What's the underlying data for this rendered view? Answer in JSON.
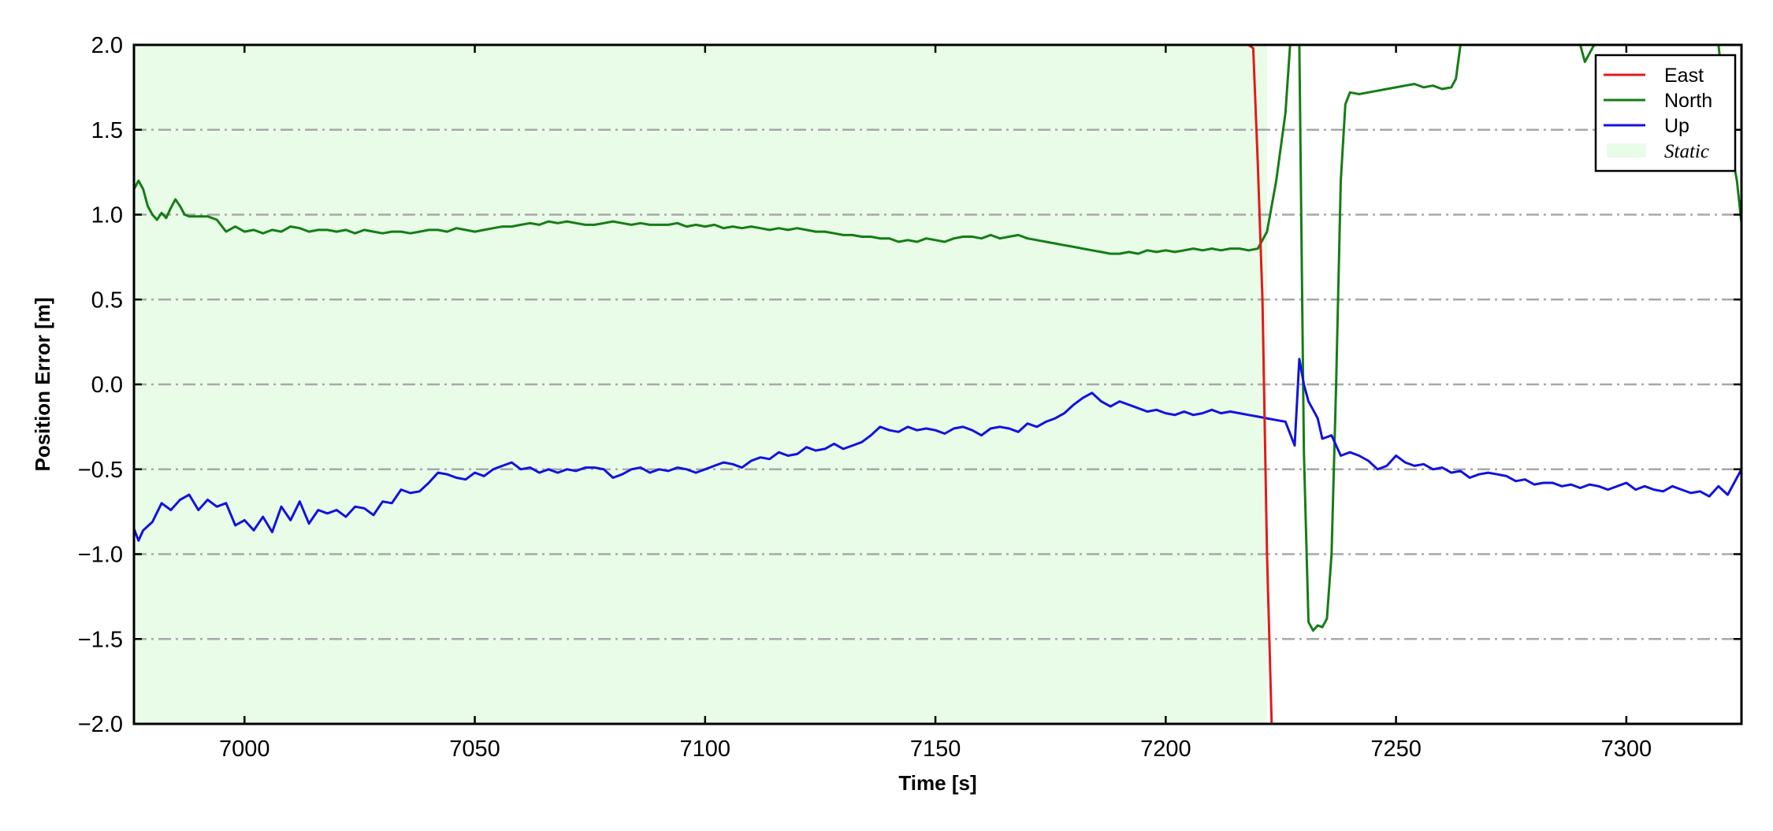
{
  "chart_data": {
    "type": "line",
    "title": "",
    "xlabel": "Time [s]",
    "ylabel": "Position Error [m]",
    "xlim": [
      6976,
      7325
    ],
    "ylim": [
      -2.0,
      2.0
    ],
    "x_ticks": [
      7000,
      7050,
      7100,
      7150,
      7200,
      7250,
      7300
    ],
    "y_ticks": [
      -2.0,
      -1.5,
      -1.0,
      -0.5,
      0.0,
      0.5,
      1.0,
      1.5,
      2.0
    ],
    "y_tick_labels": [
      "−2.0",
      "−1.5",
      "−1.0",
      "−0.5",
      "0.0",
      "0.5",
      "1.0",
      "1.5",
      "2.0"
    ],
    "grid": "horizontal dash-dot",
    "legend_position": "top-right",
    "static_region": {
      "name": "Static",
      "x_start": 6976,
      "x_end": 7222,
      "color": "#e8fce8"
    },
    "colors": {
      "East": "#e31a1c",
      "North": "#157d15",
      "Up": "#1212dd"
    },
    "series": [
      {
        "name": "East",
        "x": [
          7213,
          7217,
          7219,
          7220,
          7221,
          7222,
          7223
        ],
        "y": [
          2.0,
          2.02,
          1.98,
          1.3,
          0.5,
          -1.0,
          -2.0
        ]
      },
      {
        "name": "North",
        "x": [
          6976,
          6977,
          6978,
          6979,
          6980,
          6981,
          6982,
          6983,
          6984,
          6985,
          6986,
          6987,
          6988,
          6990,
          6992,
          6994,
          6996,
          6998,
          7000,
          7002,
          7004,
          7006,
          7008,
          7010,
          7012,
          7014,
          7016,
          7018,
          7020,
          7022,
          7024,
          7026,
          7028,
          7030,
          7032,
          7034,
          7036,
          7038,
          7040,
          7042,
          7044,
          7046,
          7048,
          7050,
          7052,
          7054,
          7056,
          7058,
          7060,
          7062,
          7064,
          7066,
          7068,
          7070,
          7072,
          7074,
          7076,
          7078,
          7080,
          7082,
          7084,
          7086,
          7088,
          7090,
          7092,
          7094,
          7096,
          7098,
          7100,
          7102,
          7104,
          7106,
          7108,
          7110,
          7112,
          7114,
          7116,
          7118,
          7120,
          7122,
          7124,
          7126,
          7128,
          7130,
          7132,
          7134,
          7136,
          7138,
          7140,
          7142,
          7144,
          7146,
          7148,
          7150,
          7152,
          7154,
          7156,
          7158,
          7160,
          7162,
          7164,
          7166,
          7168,
          7170,
          7172,
          7174,
          7176,
          7178,
          7180,
          7182,
          7184,
          7186,
          7188,
          7190,
          7192,
          7194,
          7196,
          7198,
          7200,
          7202,
          7204,
          7206,
          7208,
          7210,
          7212,
          7214,
          7216,
          7218,
          7220,
          7222,
          7224,
          7226,
          7227,
          7228,
          7229,
          7230,
          7231,
          7232,
          7233,
          7234,
          7235,
          7236,
          7237,
          7238,
          7239,
          7240,
          7242,
          7244,
          7246,
          7248,
          7250,
          7252,
          7254,
          7256,
          7258,
          7260,
          7262,
          7263,
          7264,
          7265,
          7266,
          7270,
          7290,
          7291,
          7292,
          7293,
          7295,
          7320,
          7322,
          7324,
          7325
        ],
        "y": [
          1.15,
          1.2,
          1.15,
          1.05,
          1.0,
          0.97,
          1.01,
          0.98,
          1.04,
          1.09,
          1.05,
          1.0,
          0.99,
          0.99,
          0.99,
          0.97,
          0.9,
          0.93,
          0.9,
          0.91,
          0.89,
          0.91,
          0.9,
          0.93,
          0.92,
          0.9,
          0.91,
          0.91,
          0.9,
          0.91,
          0.89,
          0.91,
          0.9,
          0.89,
          0.9,
          0.9,
          0.89,
          0.9,
          0.91,
          0.91,
          0.9,
          0.92,
          0.91,
          0.9,
          0.91,
          0.92,
          0.93,
          0.93,
          0.94,
          0.95,
          0.94,
          0.96,
          0.95,
          0.96,
          0.95,
          0.94,
          0.94,
          0.95,
          0.96,
          0.95,
          0.94,
          0.95,
          0.94,
          0.94,
          0.94,
          0.95,
          0.93,
          0.94,
          0.93,
          0.94,
          0.92,
          0.93,
          0.92,
          0.93,
          0.92,
          0.91,
          0.92,
          0.91,
          0.92,
          0.91,
          0.9,
          0.9,
          0.89,
          0.88,
          0.88,
          0.87,
          0.87,
          0.86,
          0.86,
          0.84,
          0.85,
          0.84,
          0.86,
          0.85,
          0.84,
          0.86,
          0.87,
          0.87,
          0.86,
          0.88,
          0.86,
          0.87,
          0.88,
          0.86,
          0.85,
          0.84,
          0.83,
          0.82,
          0.81,
          0.8,
          0.79,
          0.78,
          0.77,
          0.77,
          0.78,
          0.77,
          0.79,
          0.78,
          0.79,
          0.78,
          0.79,
          0.8,
          0.79,
          0.8,
          0.79,
          0.8,
          0.8,
          0.79,
          0.8,
          0.9,
          1.2,
          1.6,
          2.0,
          2.1,
          2.0,
          -0.4,
          -1.4,
          -1.45,
          -1.42,
          -1.43,
          -1.38,
          -1.0,
          0.0,
          1.2,
          1.65,
          1.72,
          1.71,
          1.72,
          1.73,
          1.74,
          1.75,
          1.76,
          1.77,
          1.75,
          1.76,
          1.74,
          1.75,
          1.8,
          2.0,
          2.1,
          2.1,
          2.1,
          2.0,
          1.9,
          1.95,
          2.0,
          2.1,
          2.0,
          1.5,
          1.2,
          0.95
        ]
      },
      {
        "name": "Up",
        "x": [
          6976,
          6977,
          6978,
          6980,
          6982,
          6984,
          6986,
          6988,
          6990,
          6992,
          6994,
          6996,
          6998,
          7000,
          7002,
          7004,
          7006,
          7008,
          7010,
          7012,
          7014,
          7016,
          7018,
          7020,
          7022,
          7024,
          7026,
          7028,
          7030,
          7032,
          7034,
          7036,
          7038,
          7040,
          7042,
          7044,
          7046,
          7048,
          7050,
          7052,
          7054,
          7056,
          7058,
          7060,
          7062,
          7064,
          7066,
          7068,
          7070,
          7072,
          7074,
          7076,
          7078,
          7080,
          7082,
          7084,
          7086,
          7088,
          7090,
          7092,
          7094,
          7096,
          7098,
          7100,
          7102,
          7104,
          7106,
          7108,
          7110,
          7112,
          7114,
          7116,
          7118,
          7120,
          7122,
          7124,
          7126,
          7128,
          7130,
          7132,
          7134,
          7136,
          7138,
          7140,
          7142,
          7144,
          7146,
          7148,
          7150,
          7152,
          7154,
          7156,
          7158,
          7160,
          7162,
          7164,
          7166,
          7168,
          7170,
          7172,
          7174,
          7176,
          7178,
          7180,
          7182,
          7184,
          7186,
          7188,
          7190,
          7192,
          7194,
          7196,
          7198,
          7200,
          7202,
          7204,
          7206,
          7208,
          7210,
          7212,
          7214,
          7216,
          7218,
          7220,
          7222,
          7224,
          7226,
          7228,
          7229,
          7230,
          7231,
          7232,
          7233,
          7234,
          7236,
          7238,
          7240,
          7242,
          7244,
          7246,
          7248,
          7250,
          7252,
          7254,
          7256,
          7258,
          7260,
          7262,
          7264,
          7266,
          7268,
          7270,
          7272,
          7274,
          7276,
          7278,
          7280,
          7282,
          7284,
          7286,
          7288,
          7290,
          7292,
          7294,
          7296,
          7298,
          7300,
          7302,
          7304,
          7306,
          7308,
          7310,
          7312,
          7314,
          7316,
          7318,
          7320,
          7322,
          7324,
          7325
        ],
        "y": [
          -0.85,
          -0.92,
          -0.86,
          -0.81,
          -0.7,
          -0.74,
          -0.68,
          -0.65,
          -0.74,
          -0.68,
          -0.72,
          -0.7,
          -0.83,
          -0.8,
          -0.86,
          -0.78,
          -0.87,
          -0.72,
          -0.8,
          -0.69,
          -0.82,
          -0.74,
          -0.76,
          -0.74,
          -0.78,
          -0.72,
          -0.73,
          -0.77,
          -0.69,
          -0.7,
          -0.62,
          -0.64,
          -0.63,
          -0.58,
          -0.52,
          -0.53,
          -0.55,
          -0.56,
          -0.52,
          -0.54,
          -0.5,
          -0.48,
          -0.46,
          -0.5,
          -0.49,
          -0.52,
          -0.5,
          -0.52,
          -0.5,
          -0.51,
          -0.49,
          -0.49,
          -0.5,
          -0.55,
          -0.53,
          -0.5,
          -0.49,
          -0.52,
          -0.5,
          -0.51,
          -0.49,
          -0.5,
          -0.52,
          -0.5,
          -0.48,
          -0.46,
          -0.47,
          -0.49,
          -0.45,
          -0.43,
          -0.44,
          -0.4,
          -0.42,
          -0.41,
          -0.37,
          -0.39,
          -0.38,
          -0.35,
          -0.38,
          -0.36,
          -0.34,
          -0.3,
          -0.25,
          -0.27,
          -0.28,
          -0.25,
          -0.27,
          -0.26,
          -0.27,
          -0.29,
          -0.26,
          -0.25,
          -0.27,
          -0.3,
          -0.26,
          -0.25,
          -0.26,
          -0.28,
          -0.23,
          -0.25,
          -0.22,
          -0.2,
          -0.17,
          -0.12,
          -0.08,
          -0.05,
          -0.1,
          -0.13,
          -0.1,
          -0.12,
          -0.14,
          -0.16,
          -0.15,
          -0.17,
          -0.18,
          -0.16,
          -0.18,
          -0.17,
          -0.15,
          -0.17,
          -0.16,
          -0.17,
          -0.18,
          -0.19,
          -0.2,
          -0.21,
          -0.22,
          -0.36,
          0.15,
          0.0,
          -0.1,
          -0.15,
          -0.2,
          -0.32,
          -0.3,
          -0.42,
          -0.4,
          -0.42,
          -0.45,
          -0.5,
          -0.48,
          -0.42,
          -0.46,
          -0.48,
          -0.47,
          -0.5,
          -0.49,
          -0.52,
          -0.51,
          -0.55,
          -0.53,
          -0.52,
          -0.53,
          -0.54,
          -0.57,
          -0.56,
          -0.59,
          -0.58,
          -0.58,
          -0.6,
          -0.59,
          -0.61,
          -0.59,
          -0.6,
          -0.62,
          -0.6,
          -0.58,
          -0.62,
          -0.6,
          -0.62,
          -0.63,
          -0.6,
          -0.62,
          -0.64,
          -0.63,
          -0.66,
          -0.6,
          -0.65,
          -0.55,
          -0.5
        ]
      }
    ]
  }
}
